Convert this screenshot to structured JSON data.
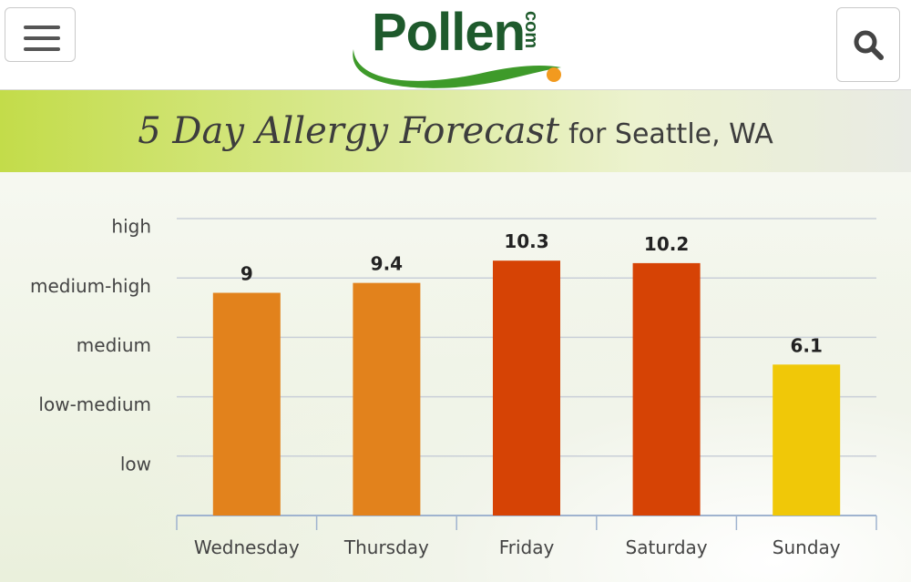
{
  "header": {
    "logo_text": "Pollen",
    "logo_suffix": "com",
    "menu_icon": "hamburger-menu-icon",
    "search_icon": "search-icon",
    "logo_green": "#1e5a2c",
    "logo_dot_orange": "#f29a1f"
  },
  "banner": {
    "title": "5 Day Allergy Forecast",
    "subtitle": "for Seattle, WA"
  },
  "chart_data": {
    "type": "bar",
    "categories": [
      "Wednesday",
      "Thursday",
      "Friday",
      "Saturday",
      "Sunday"
    ],
    "values": [
      9,
      9.4,
      10.3,
      10.2,
      6.1
    ],
    "value_labels": [
      "9",
      "9.4",
      "10.3",
      "10.2",
      "6.1"
    ],
    "bar_colors": [
      "#e2821c",
      "#e2821c",
      "#d64305",
      "#d64305",
      "#f0c808"
    ],
    "y_level_labels": [
      "low",
      "low-medium",
      "medium",
      "medium-high",
      "high"
    ],
    "ylim": [
      0,
      12
    ],
    "grid": true,
    "title": "",
    "xlabel": "",
    "ylabel": ""
  }
}
